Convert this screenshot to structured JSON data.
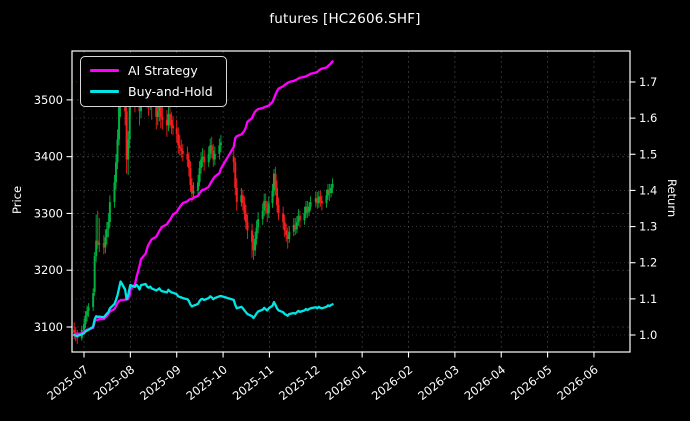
{
  "title": "futures [HC2606.SHF]",
  "colors": {
    "background": "#000000",
    "text": "#ffffff",
    "grid_major": "#6f6f6f",
    "grid_minor": "#9a9a9a",
    "axis_border": "#ffffff",
    "up_candle": "#00b140",
    "down_candle": "#fa1d1d",
    "ai_strategy": "#ff00ff",
    "buy_and_hold": "#00e5e5",
    "legend_border": "#d8d8d8"
  },
  "legend": [
    {
      "label": "AI Strategy",
      "color": "#ff00ff"
    },
    {
      "label": "Buy-and-Hold",
      "color": "#00e5e5"
    }
  ],
  "axes": {
    "left": {
      "label": "Price",
      "ticks": [
        "3100",
        "3200",
        "3300",
        "3400",
        "3500"
      ]
    },
    "right": {
      "label": "Return",
      "ticks": [
        "1.0",
        "1.1",
        "1.2",
        "1.3",
        "1.4",
        "1.5",
        "1.6",
        "1.7"
      ]
    },
    "bottom": {
      "ticks": [
        "2025-07",
        "2025-08",
        "2025-09",
        "2025-10",
        "2025-11",
        "2025-12",
        "2026-01",
        "2026-02",
        "2026-03",
        "2026-04",
        "2026-05",
        "2026-06"
      ]
    }
  },
  "chart_data": {
    "type": "candlestick+line",
    "title": "futures [HC2606.SHF]",
    "ylabel_left": "Price",
    "ylabel_right": "Return",
    "price_axis_range": [
      3056,
      3586
    ],
    "return_axis_range": [
      0.953,
      1.789
    ],
    "x_axis_months": [
      "2025-07",
      "2025-08",
      "2025-09",
      "2025-10",
      "2025-11",
      "2025-12",
      "2026-01",
      "2026-02",
      "2026-03",
      "2026-04",
      "2026-05",
      "2026-06"
    ],
    "grid": true,
    "legend_position": "upper-left",
    "candles": {
      "columns": [
        "date",
        "open",
        "high",
        "low",
        "close"
      ],
      "rows": [
        [
          "2025-06-25",
          3095,
          3108,
          3078,
          3090
        ],
        [
          "2025-06-26",
          3090,
          3100,
          3075,
          3085
        ],
        [
          "2025-06-27",
          3085,
          3095,
          3070,
          3080
        ],
        [
          "2025-06-30",
          3080,
          3102,
          3076,
          3095
        ],
        [
          "2025-07-01",
          3095,
          3115,
          3088,
          3105
        ],
        [
          "2025-07-02",
          3105,
          3128,
          3098,
          3120
        ],
        [
          "2025-07-03",
          3120,
          3138,
          3110,
          3128
        ],
        [
          "2025-07-04",
          3128,
          3142,
          3118,
          3135
        ],
        [
          "2025-07-07",
          3135,
          3168,
          3128,
          3160
        ],
        [
          "2025-07-08",
          3162,
          3232,
          3155,
          3225
        ],
        [
          "2025-07-09",
          3225,
          3298,
          3215,
          3252
        ],
        [
          "2025-07-10",
          3252,
          3305,
          3238,
          3245
        ],
        [
          "2025-07-11",
          3245,
          3292,
          3232,
          3248
        ],
        [
          "2025-07-14",
          3248,
          3262,
          3228,
          3240
        ],
        [
          "2025-07-15",
          3240,
          3272,
          3230,
          3258
        ],
        [
          "2025-07-16",
          3258,
          3285,
          3245,
          3272
        ],
        [
          "2025-07-17",
          3272,
          3300,
          3258,
          3285
        ],
        [
          "2025-07-18",
          3285,
          3332,
          3275,
          3320
        ],
        [
          "2025-07-21",
          3320,
          3368,
          3310,
          3355
        ],
        [
          "2025-07-22",
          3355,
          3405,
          3342,
          3390
        ],
        [
          "2025-07-23",
          3390,
          3448,
          3378,
          3430
        ],
        [
          "2025-07-24",
          3430,
          3505,
          3420,
          3490
        ],
        [
          "2025-07-25",
          3490,
          3560,
          3470,
          3548
        ],
        [
          "2025-07-28",
          3548,
          3562,
          3455,
          3480
        ],
        [
          "2025-07-29",
          3480,
          3500,
          3370,
          3395
        ],
        [
          "2025-07-30",
          3395,
          3445,
          3368,
          3430
        ],
        [
          "2025-07-31",
          3430,
          3512,
          3415,
          3495
        ],
        [
          "2025-08-01",
          3495,
          3542,
          3472,
          3515
        ],
        [
          "2025-08-04",
          3515,
          3538,
          3478,
          3500
        ],
        [
          "2025-08-05",
          3500,
          3535,
          3488,
          3520
        ],
        [
          "2025-08-06",
          3520,
          3548,
          3490,
          3505
        ],
        [
          "2025-08-07",
          3505,
          3522,
          3455,
          3480
        ],
        [
          "2025-08-08",
          3480,
          3528,
          3468,
          3515
        ],
        [
          "2025-08-11",
          3515,
          3555,
          3502,
          3525
        ],
        [
          "2025-08-12",
          3525,
          3540,
          3485,
          3505
        ],
        [
          "2025-08-13",
          3505,
          3525,
          3472,
          3495
        ],
        [
          "2025-08-14",
          3495,
          3522,
          3482,
          3505
        ],
        [
          "2025-08-15",
          3505,
          3518,
          3465,
          3490
        ],
        [
          "2025-08-18",
          3490,
          3508,
          3448,
          3470
        ],
        [
          "2025-08-19",
          3470,
          3495,
          3455,
          3480
        ],
        [
          "2025-08-20",
          3480,
          3505,
          3462,
          3490
        ],
        [
          "2025-08-21",
          3490,
          3502,
          3450,
          3470
        ],
        [
          "2025-08-22",
          3470,
          3488,
          3448,
          3465
        ],
        [
          "2025-08-25",
          3465,
          3482,
          3435,
          3455
        ],
        [
          "2025-08-26",
          3455,
          3490,
          3445,
          3475
        ],
        [
          "2025-08-27",
          3475,
          3488,
          3450,
          3465
        ],
        [
          "2025-08-28",
          3465,
          3478,
          3440,
          3455
        ],
        [
          "2025-08-29",
          3455,
          3472,
          3438,
          3450
        ],
        [
          "2025-09-01",
          3450,
          3465,
          3425,
          3440
        ],
        [
          "2025-09-02",
          3440,
          3452,
          3405,
          3420
        ],
        [
          "2025-09-03",
          3420,
          3438,
          3402,
          3415
        ],
        [
          "2025-09-04",
          3415,
          3430,
          3398,
          3410
        ],
        [
          "2025-09-05",
          3410,
          3422,
          3392,
          3405
        ],
        [
          "2025-09-08",
          3405,
          3418,
          3382,
          3395
        ],
        [
          "2025-09-09",
          3395,
          3408,
          3365,
          3380
        ],
        [
          "2025-09-10",
          3380,
          3392,
          3338,
          3350
        ],
        [
          "2025-09-11",
          3350,
          3362,
          3320,
          3335
        ],
        [
          "2025-09-12",
          3335,
          3355,
          3325,
          3340
        ],
        [
          "2025-09-15",
          3340,
          3368,
          3332,
          3355
        ],
        [
          "2025-09-16",
          3355,
          3392,
          3348,
          3380
        ],
        [
          "2025-09-17",
          3380,
          3408,
          3370,
          3395
        ],
        [
          "2025-09-18",
          3395,
          3415,
          3382,
          3400
        ],
        [
          "2025-09-19",
          3400,
          3412,
          3375,
          3390
        ],
        [
          "2025-09-22",
          3390,
          3418,
          3382,
          3405
        ],
        [
          "2025-09-23",
          3405,
          3432,
          3395,
          3420
        ],
        [
          "2025-09-24",
          3420,
          3435,
          3398,
          3410
        ],
        [
          "2025-09-25",
          3410,
          3422,
          3382,
          3395
        ],
        [
          "2025-09-26",
          3395,
          3418,
          3385,
          3405
        ],
        [
          "2025-09-29",
          3405,
          3432,
          3395,
          3420
        ],
        [
          "2025-09-30",
          3420,
          3438,
          3408,
          3425
        ],
        [
          "2025-10-08",
          3400,
          3412,
          3372,
          3390
        ],
        [
          "2025-10-09",
          3390,
          3398,
          3332,
          3345
        ],
        [
          "2025-10-10",
          3345,
          3362,
          3305,
          3320
        ],
        [
          "2025-10-13",
          3320,
          3345,
          3312,
          3332
        ],
        [
          "2025-10-14",
          3332,
          3342,
          3305,
          3318
        ],
        [
          "2025-10-15",
          3318,
          3330,
          3288,
          3300
        ],
        [
          "2025-10-16",
          3300,
          3315,
          3272,
          3285
        ],
        [
          "2025-10-17",
          3285,
          3298,
          3255,
          3270
        ],
        [
          "2025-10-20",
          3270,
          3282,
          3222,
          3250
        ],
        [
          "2025-10-21",
          3250,
          3262,
          3218,
          3235
        ],
        [
          "2025-10-22",
          3235,
          3268,
          3225,
          3255
        ],
        [
          "2025-10-23",
          3255,
          3288,
          3245,
          3275
        ],
        [
          "2025-10-24",
          3275,
          3302,
          3265,
          3290
        ],
        [
          "2025-10-27",
          3290,
          3318,
          3280,
          3305
        ],
        [
          "2025-10-28",
          3305,
          3335,
          3295,
          3322
        ],
        [
          "2025-10-29",
          3322,
          3335,
          3298,
          3310
        ],
        [
          "2025-10-30",
          3310,
          3322,
          3285,
          3300
        ],
        [
          "2025-10-31",
          3300,
          3330,
          3292,
          3318
        ],
        [
          "2025-11-03",
          3318,
          3352,
          3310,
          3340
        ],
        [
          "2025-11-04",
          3340,
          3378,
          3330,
          3370
        ],
        [
          "2025-11-05",
          3370,
          3382,
          3332,
          3345
        ],
        [
          "2025-11-06",
          3345,
          3358,
          3302,
          3315
        ],
        [
          "2025-11-07",
          3315,
          3328,
          3288,
          3300
        ],
        [
          "2025-11-10",
          3300,
          3312,
          3272,
          3285
        ],
        [
          "2025-11-11",
          3285,
          3298,
          3258,
          3270
        ],
        [
          "2025-11-12",
          3270,
          3282,
          3250,
          3262
        ],
        [
          "2025-11-13",
          3262,
          3275,
          3238,
          3255
        ],
        [
          "2025-11-14",
          3255,
          3278,
          3248,
          3268
        ],
        [
          "2025-11-17",
          3268,
          3292,
          3260,
          3280
        ],
        [
          "2025-11-18",
          3280,
          3292,
          3262,
          3272
        ],
        [
          "2025-11-19",
          3272,
          3295,
          3265,
          3285
        ],
        [
          "2025-11-20",
          3285,
          3308,
          3278,
          3296
        ],
        [
          "2025-11-21",
          3296,
          3305,
          3275,
          3288
        ],
        [
          "2025-11-24",
          3288,
          3312,
          3280,
          3300
        ],
        [
          "2025-11-25",
          3300,
          3322,
          3292,
          3312
        ],
        [
          "2025-11-26",
          3312,
          3322,
          3292,
          3302
        ],
        [
          "2025-11-27",
          3302,
          3320,
          3295,
          3312
        ],
        [
          "2025-11-28",
          3312,
          3330,
          3305,
          3320
        ],
        [
          "2025-12-01",
          3320,
          3338,
          3312,
          3327
        ],
        [
          "2025-12-02",
          3327,
          3338,
          3308,
          3318
        ],
        [
          "2025-12-03",
          3318,
          3340,
          3310,
          3330
        ],
        [
          "2025-12-04",
          3330,
          3340,
          3312,
          3322
        ],
        [
          "2025-12-05",
          3322,
          3332,
          3305,
          3318
        ],
        [
          "2025-12-08",
          3318,
          3342,
          3310,
          3332
        ],
        [
          "2025-12-09",
          3332,
          3352,
          3324,
          3342
        ],
        [
          "2025-12-10",
          3342,
          3352,
          3322,
          3336
        ],
        [
          "2025-12-11",
          3336,
          3352,
          3328,
          3345
        ],
        [
          "2025-12-12",
          3345,
          3362,
          3336,
          3352
        ]
      ]
    },
    "series": [
      {
        "name": "AI Strategy",
        "axis": "right",
        "color": "#ff00ff",
        "values": [
          1.0,
          1.002,
          1.004,
          1.004,
          1.01,
          1.012,
          1.015,
          1.015,
          1.02,
          1.038,
          1.042,
          1.042,
          1.044,
          1.044,
          1.048,
          1.052,
          1.058,
          1.065,
          1.072,
          1.08,
          1.088,
          1.094,
          1.096,
          1.098,
          1.098,
          1.1,
          1.11,
          1.125,
          1.14,
          1.16,
          1.175,
          1.19,
          1.21,
          1.225,
          1.24,
          1.25,
          1.258,
          1.265,
          1.272,
          1.28,
          1.288,
          1.294,
          1.3,
          1.306,
          1.313,
          1.319,
          1.326,
          1.333,
          1.34,
          1.348,
          1.354,
          1.36,
          1.365,
          1.37,
          1.374,
          1.376,
          1.376,
          1.38,
          1.385,
          1.392,
          1.398,
          1.402,
          1.402,
          1.41,
          1.418,
          1.425,
          1.432,
          1.438,
          1.448,
          1.46,
          1.52,
          1.545,
          1.55,
          1.555,
          1.56,
          1.565,
          1.575,
          1.59,
          1.6,
          1.61,
          1.618,
          1.622,
          1.625,
          1.628,
          1.63,
          1.632,
          1.633,
          1.635,
          1.645,
          1.655,
          1.665,
          1.675,
          1.682,
          1.688,
          1.692,
          1.695,
          1.698,
          1.7,
          1.703,
          1.705,
          1.707,
          1.71,
          1.712,
          1.714,
          1.716,
          1.718,
          1.72,
          1.723,
          1.726,
          1.728,
          1.732,
          1.735,
          1.737,
          1.74,
          1.744,
          1.748,
          1.752,
          1.757
        ]
      },
      {
        "name": "Buy-and-Hold",
        "axis": "right",
        "color": "#00e5e5",
        "values": [
          1.0,
          0.998,
          0.997,
          1.002,
          1.005,
          1.01,
          1.012,
          1.015,
          1.023,
          1.044,
          1.052,
          1.05,
          1.051,
          1.049,
          1.054,
          1.059,
          1.063,
          1.074,
          1.086,
          1.097,
          1.11,
          1.129,
          1.148,
          1.126,
          1.099,
          1.11,
          1.131,
          1.138,
          1.133,
          1.139,
          1.134,
          1.126,
          1.138,
          1.141,
          1.134,
          1.131,
          1.134,
          1.129,
          1.123,
          1.126,
          1.129,
          1.123,
          1.121,
          1.118,
          1.125,
          1.121,
          1.118,
          1.117,
          1.113,
          1.107,
          1.105,
          1.104,
          1.102,
          1.099,
          1.094,
          1.084,
          1.079,
          1.081,
          1.086,
          1.094,
          1.099,
          1.1,
          1.097,
          1.102,
          1.107,
          1.104,
          1.099,
          1.102,
          1.107,
          1.108,
          1.097,
          1.083,
          1.074,
          1.078,
          1.074,
          1.068,
          1.063,
          1.058,
          1.052,
          1.047,
          1.053,
          1.06,
          1.065,
          1.07,
          1.075,
          1.071,
          1.068,
          1.074,
          1.081,
          1.091,
          1.083,
          1.073,
          1.068,
          1.063,
          1.058,
          1.056,
          1.053,
          1.058,
          1.061,
          1.059,
          1.063,
          1.067,
          1.064,
          1.068,
          1.072,
          1.069,
          1.072,
          1.074,
          1.077,
          1.074,
          1.078,
          1.075,
          1.074,
          1.078,
          1.082,
          1.08,
          1.083,
          1.085
        ]
      }
    ]
  }
}
